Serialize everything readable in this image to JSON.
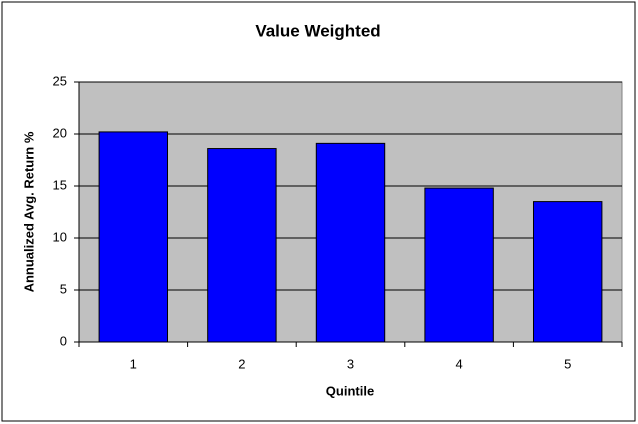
{
  "chart_data": {
    "type": "bar",
    "title": "Value Weighted",
    "x_label": "Quintile",
    "y_label": "Annualized Avg. Return %",
    "categories": [
      "1",
      "2",
      "3",
      "4",
      "5"
    ],
    "values": [
      20.2,
      18.6,
      19.1,
      14.8,
      13.5
    ],
    "color": "#0000ff",
    "ylim": [
      0,
      25
    ],
    "yticks": [
      0,
      5,
      10,
      15,
      20,
      25
    ],
    "grid": true
  }
}
